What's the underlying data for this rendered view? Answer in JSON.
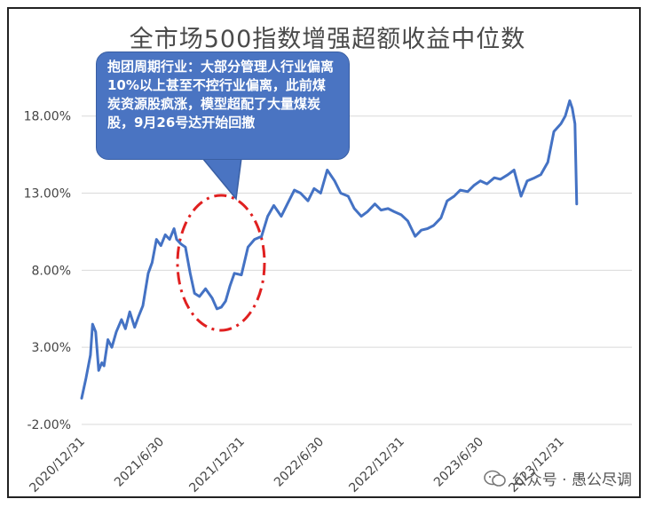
{
  "chart_data": {
    "type": "line",
    "title": "全市场500指数增强超额收益中位数",
    "xlabel": "",
    "ylabel": "",
    "ylim": [
      -2,
      20
    ],
    "yticks": [
      "-2.00%",
      "3.00%",
      "8.00%",
      "13.00%",
      "18.00%"
    ],
    "ytick_values": [
      -2,
      3,
      8,
      13,
      18
    ],
    "xticks": [
      "2020/12/31",
      "2021/6/30",
      "2021/12/31",
      "2022/6/30",
      "2022/12/31",
      "2023/6/30",
      "2023/12/31"
    ],
    "xtick_values": [
      "2020-12-31",
      "2021-06-30",
      "2021-12-31",
      "2022-06-30",
      "2022-12-31",
      "2023-06-30",
      "2023-12-31"
    ],
    "grid": true,
    "legend": "none",
    "line_color": "#4472c4",
    "x": [
      "2020-12-31",
      "2021-01-10",
      "2021-01-20",
      "2021-01-25",
      "2021-02-01",
      "2021-02-08",
      "2021-02-15",
      "2021-02-20",
      "2021-03-01",
      "2021-03-10",
      "2021-03-20",
      "2021-04-01",
      "2021-04-10",
      "2021-04-20",
      "2021-05-01",
      "2021-05-10",
      "2021-05-20",
      "2021-06-01",
      "2021-06-10",
      "2021-06-20",
      "2021-06-30",
      "2021-07-10",
      "2021-07-20",
      "2021-07-30",
      "2021-08-05",
      "2021-08-15",
      "2021-08-25",
      "2021-09-05",
      "2021-09-15",
      "2021-09-26",
      "2021-10-10",
      "2021-10-25",
      "2021-11-05",
      "2021-11-15",
      "2021-11-25",
      "2021-12-05",
      "2021-12-15",
      "2021-12-31",
      "2022-01-15",
      "2022-01-30",
      "2022-02-15",
      "2022-03-01",
      "2022-03-15",
      "2022-04-01",
      "2022-04-15",
      "2022-05-01",
      "2022-05-15",
      "2022-06-01",
      "2022-06-15",
      "2022-06-30",
      "2022-07-15",
      "2022-08-01",
      "2022-08-15",
      "2022-09-01",
      "2022-09-15",
      "2022-10-01",
      "2022-10-15",
      "2022-11-01",
      "2022-11-15",
      "2022-12-01",
      "2022-12-15",
      "2022-12-31",
      "2023-01-15",
      "2023-02-01",
      "2023-02-15",
      "2023-03-01",
      "2023-03-15",
      "2023-04-01",
      "2023-04-15",
      "2023-05-01",
      "2023-05-15",
      "2023-06-01",
      "2023-06-15",
      "2023-06-30",
      "2023-07-15",
      "2023-08-01",
      "2023-08-15",
      "2023-09-01",
      "2023-09-15",
      "2023-10-01",
      "2023-10-15",
      "2023-11-01",
      "2023-11-15",
      "2023-12-01",
      "2023-12-15",
      "2023-12-31",
      "2024-01-10",
      "2024-01-20",
      "2024-01-26",
      "2024-02-01",
      "2024-02-05"
    ],
    "values": [
      -0.3,
      1.0,
      2.5,
      4.5,
      4.0,
      1.5,
      2.0,
      1.8,
      3.5,
      3.0,
      4.0,
      4.8,
      4.2,
      5.3,
      4.3,
      5.0,
      5.7,
      7.8,
      8.5,
      10.0,
      9.6,
      10.3,
      10.0,
      10.7,
      10.0,
      9.7,
      9.5,
      7.8,
      6.5,
      6.3,
      6.8,
      6.2,
      5.5,
      5.6,
      6.0,
      7.0,
      7.8,
      7.7,
      9.5,
      10.0,
      10.2,
      11.5,
      12.2,
      11.5,
      12.3,
      13.2,
      13.0,
      12.5,
      13.3,
      13.0,
      14.5,
      13.8,
      13.0,
      12.8,
      12.0,
      11.5,
      11.8,
      12.3,
      11.9,
      12.0,
      11.8,
      11.6,
      11.2,
      10.2,
      10.6,
      10.7,
      10.9,
      11.4,
      12.5,
      12.8,
      13.2,
      13.1,
      13.5,
      13.8,
      13.6,
      14.0,
      13.9,
      14.2,
      14.5,
      12.8,
      13.8,
      14.0,
      14.2,
      15.0,
      17.0,
      17.5,
      18.0,
      19.0,
      18.5,
      17.5,
      12.3
    ]
  },
  "annotation": {
    "text": "抱团周期行业：大部分管理人行业偏离10%以上甚至不控行业偏离，此前煤炭资源股疯涨，模型超配了大量煤炭股，9月26号达开始回撤"
  },
  "watermark": {
    "text": "公众号 · 愚公尽调"
  }
}
